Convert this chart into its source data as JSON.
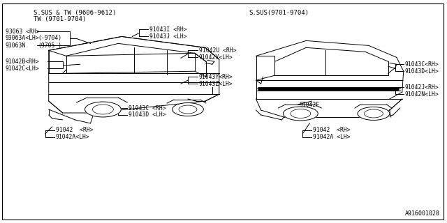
{
  "background_color": "#ffffff",
  "title_left_line1": "S.SUS & TW (9606-9612)",
  "title_left_line2": "TW (9701-9704)",
  "title_right": "S.SUS(9701-9704)",
  "footer": "A916001028",
  "font_size_labels": 5.8,
  "font_size_titles": 6.5,
  "font_size_footer": 6.0
}
